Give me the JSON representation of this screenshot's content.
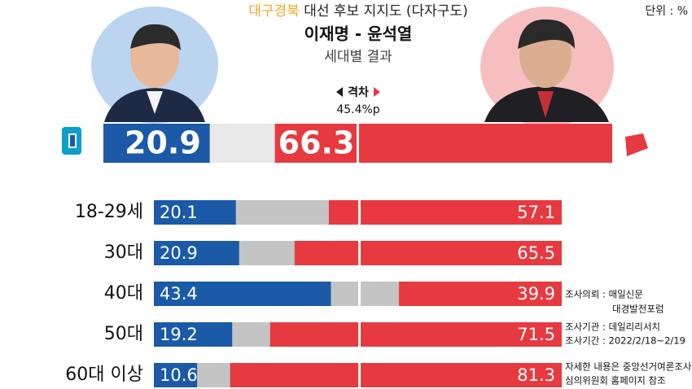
{
  "chart_data": {
    "type": "diverging-bar",
    "title_highlight": "대구경북",
    "title": " 대선 후보 지지도 (다자구도)",
    "subtitle": "이재명 - 윤석열",
    "subtitle2": "세대별 결과",
    "unit": "단위 : %",
    "gap_label": "격차",
    "gap": {
      "value": 45.4,
      "label": "45.4%p"
    },
    "xlim": [
      0,
      100
    ],
    "overall": [
      20.9,
      66.3
    ],
    "categories": [
      "18-29세",
      "30대",
      "40대",
      "50대",
      "60대 이상"
    ],
    "series": [
      {
        "color": "#1b5aa6",
        "values": [
          20.1,
          20.9,
          43.4,
          19.2,
          10.6
        ]
      },
      {
        "color": "#e63a40",
        "values": [
          57.1,
          65.5,
          39.9,
          71.5,
          81.3
        ]
      }
    ],
    "notes": [
      "조사의뢰 : 매일신문",
      "대경발전포럼",
      "조사기관 : 데일리리서치",
      "조사기간 : 2022/2/18~2/19",
      "자세한 내용은 중앙선거여론조사",
      "심의위원회 홈페이지 참조"
    ]
  }
}
